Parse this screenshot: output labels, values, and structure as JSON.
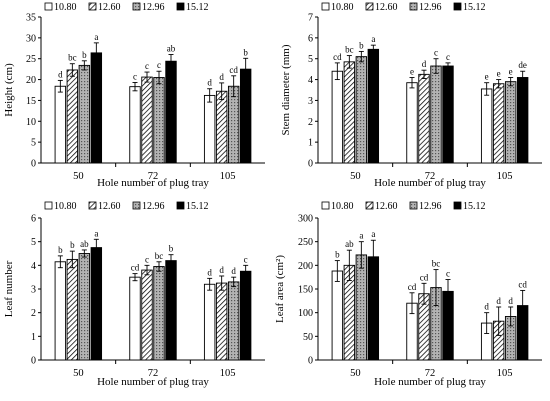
{
  "chart_data": [
    {
      "type": "bar",
      "title": "",
      "xlabel": "Hole number of plug tray",
      "ylabel": "Height (cm)",
      "categories": [
        "50",
        "72",
        "105"
      ],
      "ylim": [
        0,
        35
      ],
      "yticks": [
        0,
        5,
        10,
        15,
        20,
        25,
        30,
        35
      ],
      "grid": false,
      "legend": "top",
      "series": [
        {
          "name": "10.80",
          "values": [
            18.4,
            18.3,
            16.2
          ],
          "errors": [
            1.4,
            1.0,
            1.6
          ],
          "labels": [
            "d",
            "c",
            "d"
          ]
        },
        {
          "name": "12.60",
          "values": [
            22.3,
            20.6,
            17.2
          ],
          "errors": [
            1.5,
            1.2,
            2.0
          ],
          "labels": [
            "bc",
            "c",
            "d"
          ]
        },
        {
          "name": "12.96",
          "values": [
            23.4,
            20.5,
            18.4
          ],
          "errors": [
            1.1,
            1.5,
            2.5
          ],
          "labels": [
            "b",
            "c",
            "cd"
          ]
        },
        {
          "name": "15.12",
          "values": [
            26.4,
            24.4,
            22.5
          ],
          "errors": [
            2.4,
            1.6,
            2.6
          ],
          "labels": [
            "a",
            "ab",
            "b"
          ]
        }
      ]
    },
    {
      "type": "bar",
      "title": "",
      "xlabel": "Hole number of plug tray",
      "ylabel": "Stem diameter (mm)",
      "categories": [
        "50",
        "72",
        "105"
      ],
      "ylim": [
        0,
        7
      ],
      "yticks": [
        0,
        1,
        2,
        3,
        4,
        5,
        6,
        7
      ],
      "grid": false,
      "legend": "top",
      "series": [
        {
          "name": "10.80",
          "values": [
            4.4,
            3.85,
            3.55
          ],
          "errors": [
            0.4,
            0.25,
            0.3
          ],
          "labels": [
            "cd",
            "e",
            "e"
          ]
        },
        {
          "name": "12.60",
          "values": [
            4.85,
            4.25,
            3.8
          ],
          "errors": [
            0.3,
            0.2,
            0.2
          ],
          "labels": [
            "bc",
            "d",
            "e"
          ]
        },
        {
          "name": "12.96",
          "values": [
            5.1,
            4.65,
            3.9
          ],
          "errors": [
            0.25,
            0.35,
            0.2
          ],
          "labels": [
            "b",
            "c",
            "e"
          ]
        },
        {
          "name": "15.12",
          "values": [
            5.45,
            4.65,
            4.1
          ],
          "errors": [
            0.2,
            0.15,
            0.3
          ],
          "labels": [
            "a",
            "c",
            "de"
          ]
        }
      ]
    },
    {
      "type": "bar",
      "title": "",
      "xlabel": "Hole number of plug tray",
      "ylabel": "Leaf number",
      "categories": [
        "50",
        "72",
        "105"
      ],
      "ylim": [
        0,
        6
      ],
      "yticks": [
        0,
        1,
        2,
        3,
        4,
        5,
        6
      ],
      "grid": false,
      "legend": "top",
      "series": [
        {
          "name": "10.80",
          "values": [
            4.15,
            3.5,
            3.2
          ],
          "errors": [
            0.25,
            0.15,
            0.25
          ],
          "labels": [
            "b",
            "cd",
            "d"
          ]
        },
        {
          "name": "12.60",
          "values": [
            4.25,
            3.8,
            3.25
          ],
          "errors": [
            0.35,
            0.2,
            0.3
          ],
          "labels": [
            "b",
            "c",
            "d"
          ]
        },
        {
          "name": "12.96",
          "values": [
            4.5,
            3.95,
            3.3
          ],
          "errors": [
            0.15,
            0.2,
            0.2
          ],
          "labels": [
            "ab",
            "bc",
            "d"
          ]
        },
        {
          "name": "15.12",
          "values": [
            4.75,
            4.2,
            3.75
          ],
          "errors": [
            0.35,
            0.25,
            0.25
          ],
          "labels": [
            "a",
            "b",
            "c"
          ]
        }
      ]
    },
    {
      "type": "bar",
      "title": "",
      "xlabel": "Hole number of plug tray",
      "ylabel": "Leaf area (cm²)",
      "categories": [
        "50",
        "72",
        "105"
      ],
      "ylim": [
        0,
        300
      ],
      "yticks": [
        0,
        50,
        100,
        150,
        200,
        250,
        300
      ],
      "grid": false,
      "legend": "top",
      "series": [
        {
          "name": "10.80",
          "values": [
            188,
            120,
            78
          ],
          "errors": [
            22,
            22,
            22
          ],
          "labels": [
            "b",
            "cd",
            "d"
          ]
        },
        {
          "name": "12.60",
          "values": [
            200,
            140,
            82
          ],
          "errors": [
            32,
            22,
            30
          ],
          "labels": [
            "ab",
            "cd",
            "d"
          ]
        },
        {
          "name": "12.96",
          "values": [
            222,
            153,
            92
          ],
          "errors": [
            28,
            38,
            20
          ],
          "labels": [
            "a",
            "bc",
            "d"
          ]
        },
        {
          "name": "15.12",
          "values": [
            218,
            145,
            115
          ],
          "errors": [
            35,
            25,
            32
          ],
          "labels": [
            "a",
            "c",
            "cd"
          ]
        }
      ]
    }
  ]
}
